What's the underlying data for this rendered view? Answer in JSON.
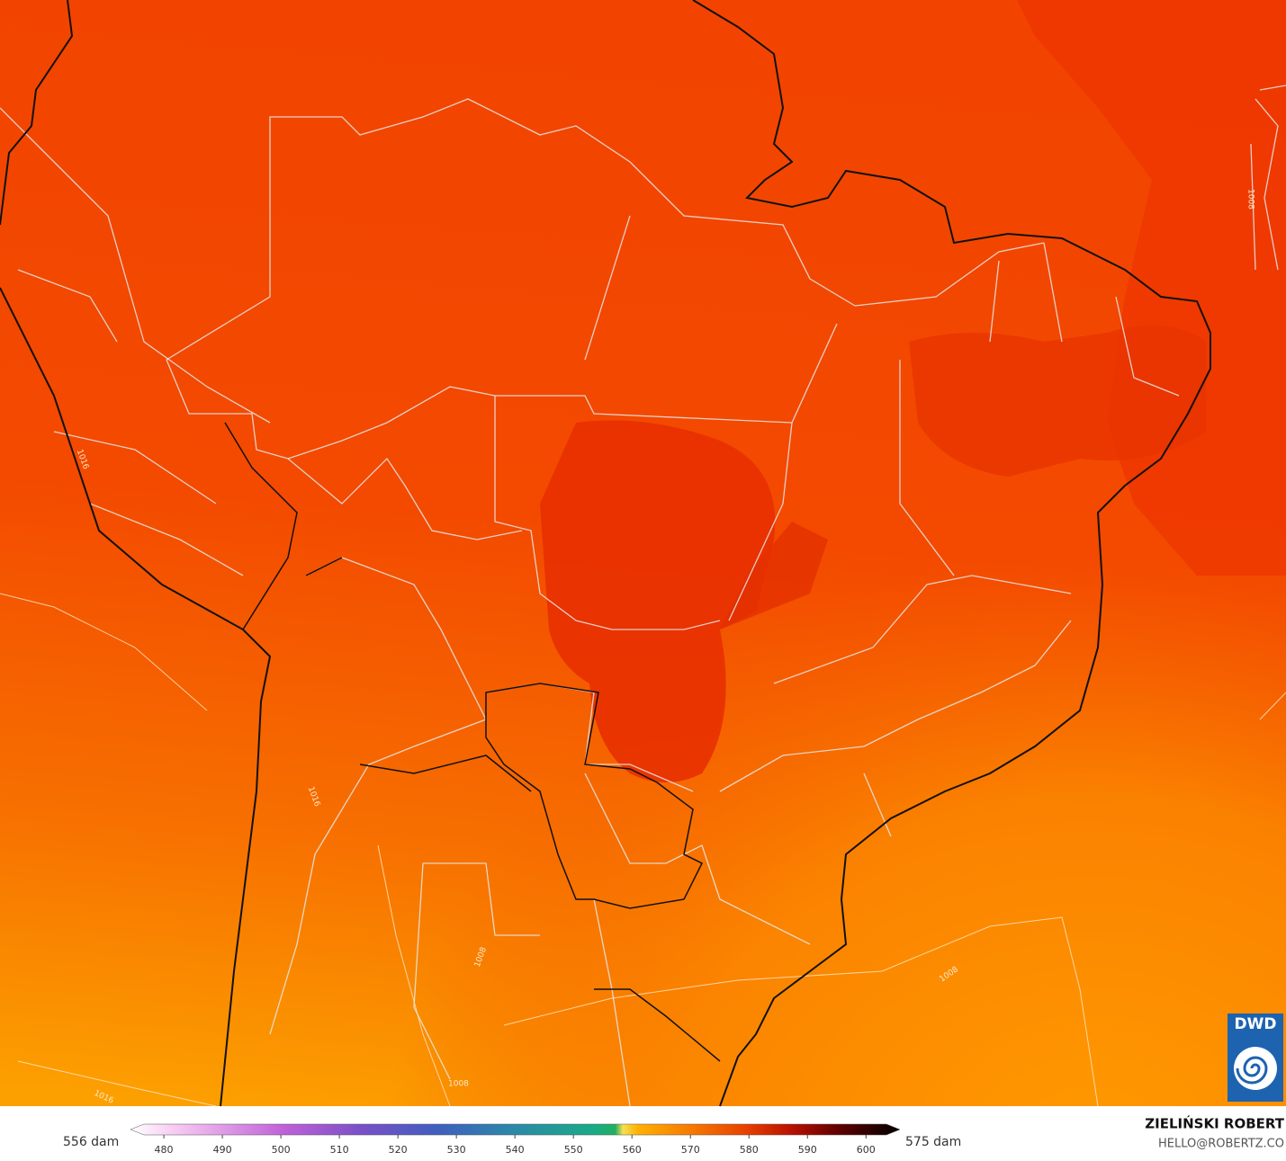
{
  "logo": "DWD",
  "contour_labels": [
    "1008",
    "1016"
  ],
  "colorbar": {
    "min_label": "556 dam",
    "max_label": "575 dam",
    "lim": [
      474.3,
      605.8
    ],
    "ticks": [
      480,
      490,
      500,
      510,
      520,
      530,
      540,
      550,
      560,
      570,
      580,
      590,
      600
    ]
  },
  "credits": {
    "author": "ZIELIŃSKI ROBERT",
    "contact": "HELLO@ROBERTZ.CO"
  }
}
